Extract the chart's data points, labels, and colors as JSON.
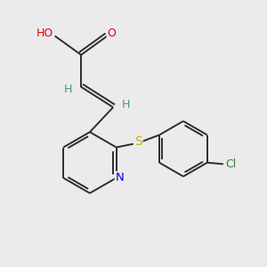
{
  "bg_color": "#ebebeb",
  "atom_colors": {
    "C": "#2d2d2d",
    "H": "#4a8f8f",
    "O": "#e60000",
    "N": "#0000e6",
    "S": "#c8b400",
    "Cl": "#3a7a3a"
  },
  "bond_color": "#2d2d2d",
  "bond_width": 1.4,
  "font_size": 8.5
}
